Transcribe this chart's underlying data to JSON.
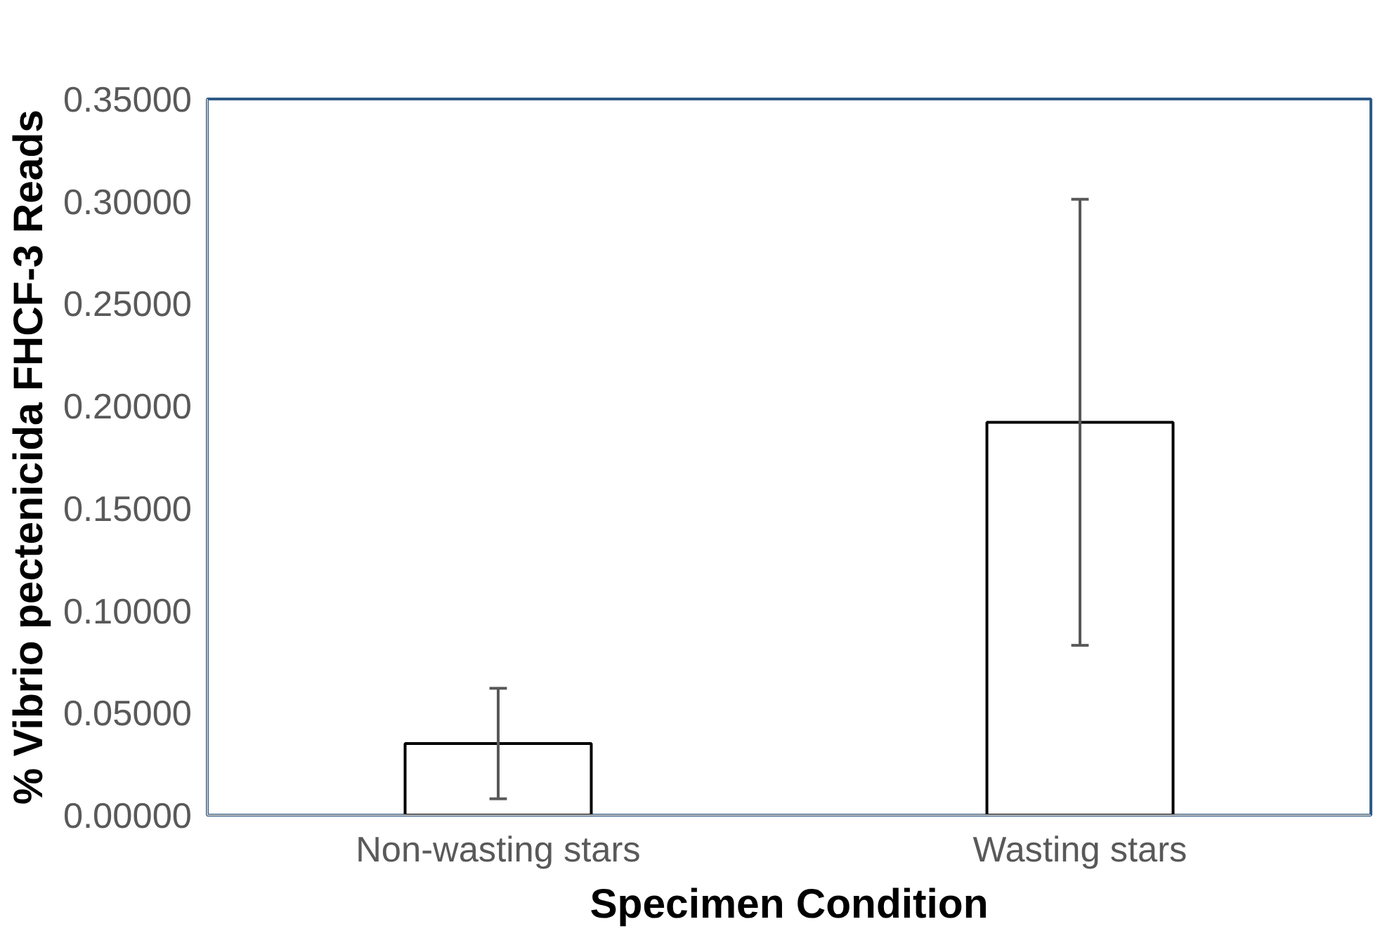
{
  "chart_data": {
    "type": "bar",
    "xlabel": "Specimen Condition",
    "ylabel": "% Vibrio pectenicida FHCF-3 Reads",
    "categories": [
      "Non-wasting stars",
      "Wasting stars"
    ],
    "values": [
      0.035,
      0.192
    ],
    "errors": [
      0.027,
      0.109
    ],
    "color": "#ffffff",
    "ylim": [
      0,
      0.35
    ],
    "yticks": [
      {
        "value": 0,
        "label": "0.00000"
      },
      {
        "value": 0.05,
        "label": "0.05000"
      },
      {
        "value": 0.1,
        "label": "0.10000"
      },
      {
        "value": 0.15,
        "label": "0.15000"
      },
      {
        "value": 0.2,
        "label": "0.20000"
      },
      {
        "value": 0.25,
        "label": "0.25000"
      },
      {
        "value": 0.3,
        "label": "0.30000"
      },
      {
        "value": 0.35,
        "label": "0.35000"
      }
    ],
    "grid": false
  }
}
